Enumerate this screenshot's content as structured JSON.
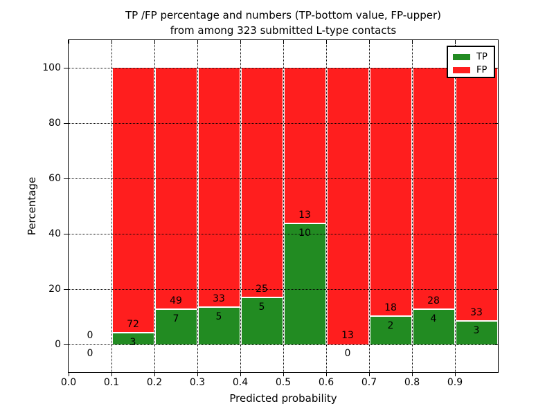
{
  "colors": {
    "tp": "#228b22",
    "fp": "#ff1e1e",
    "grid": "#000000",
    "frame": "#000000",
    "background": "#ffffff"
  },
  "chart_data": {
    "type": "bar",
    "stacked": true,
    "units": "percent",
    "title": "TP /FP percentage and numbers (TP-bottom value, FP-upper)\nfrom among 323 submitted L-type contacts",
    "xlabel": "Predicted probability",
    "ylabel": "Percentage",
    "total_contacts": 323,
    "xlim": [
      0.0,
      1.0
    ],
    "ylim": [
      -10,
      110
    ],
    "xticks": [
      0.0,
      0.1,
      0.2,
      0.3,
      0.4,
      0.5,
      0.6,
      0.7,
      0.8,
      0.9
    ],
    "yticks": [
      0,
      20,
      40,
      60,
      80,
      100
    ],
    "grid": "dotted, drawn over bars",
    "legend": {
      "position": "upper right",
      "entries": [
        {
          "label": "TP",
          "color_key": "tp"
        },
        {
          "label": "FP",
          "color_key": "fp"
        }
      ]
    },
    "bins": [
      {
        "range": [
          0.0,
          0.1
        ],
        "tp": 0,
        "fp": 0
      },
      {
        "range": [
          0.1,
          0.2
        ],
        "tp": 3,
        "fp": 72
      },
      {
        "range": [
          0.2,
          0.3
        ],
        "tp": 7,
        "fp": 49
      },
      {
        "range": [
          0.3,
          0.4
        ],
        "tp": 5,
        "fp": 33
      },
      {
        "range": [
          0.4,
          0.5
        ],
        "tp": 5,
        "fp": 25
      },
      {
        "range": [
          0.5,
          0.6
        ],
        "tp": 10,
        "fp": 13
      },
      {
        "range": [
          0.6,
          0.7
        ],
        "tp": 0,
        "fp": 13
      },
      {
        "range": [
          0.7,
          0.8
        ],
        "tp": 2,
        "fp": 18
      },
      {
        "range": [
          0.8,
          0.9
        ],
        "tp": 4,
        "fp": 28
      },
      {
        "range": [
          0.9,
          1.0
        ],
        "tp": 3,
        "fp": 33
      }
    ]
  }
}
